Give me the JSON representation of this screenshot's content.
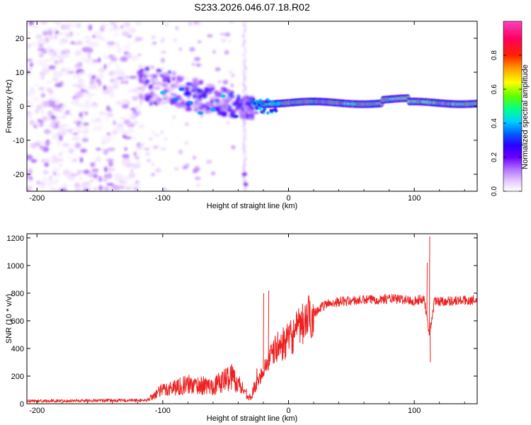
{
  "title": "S233.2026.046.07.18.R02",
  "chart_data": [
    {
      "type": "heatmap",
      "name": "spectrogram",
      "xlabel": "Height of straight line (km)",
      "ylabel": "Frequency (Hz)",
      "xlim": [
        -208,
        150
      ],
      "ylim": [
        -25,
        25
      ],
      "xticks": [
        -200,
        -100,
        0,
        100
      ],
      "yticks": [
        -20,
        -10,
        0,
        10,
        20
      ],
      "colorbar": {
        "label": "Normalized spectral amplitude",
        "range": [
          0,
          1
        ],
        "ticks": [
          0.0,
          0.2,
          0.4,
          0.6,
          0.8
        ],
        "tick_labels": [
          "0.0",
          "0.2",
          "0.4",
          "0.6",
          "0.8"
        ],
        "colormap": [
          "#ffffff",
          "#e6c8ff",
          "#b070ff",
          "#6a00ff",
          "#2a00ff",
          "#0060ff",
          "#00d0ff",
          "#00ff90",
          "#60ff00",
          "#ffff00",
          "#ffa000",
          "#ff2000",
          "#ff0060",
          "#ff40c0"
        ]
      },
      "regions": [
        {
          "x_range": [
            -208,
            -118
          ],
          "freq_range": [
            -25,
            25
          ],
          "amplitude": [
            0.02,
            0.18
          ],
          "description": "broadband noise"
        },
        {
          "x_range": [
            -118,
            -25
          ],
          "freq_range": [
            -5,
            14
          ],
          "amplitude": [
            0.05,
            0.3
          ],
          "description": "emerging signal"
        },
        {
          "x_range": [
            -25,
            150
          ],
          "freq_range": [
            -1,
            3
          ],
          "amplitude": [
            0.3,
            1.0
          ],
          "description": "narrowband tone near 1 Hz"
        }
      ]
    },
    {
      "type": "line",
      "name": "snr",
      "xlabel": "Height of straight line (km)",
      "ylabel": "SNR (10 * v/v)",
      "xlim": [
        -208,
        150
      ],
      "ylim": [
        0,
        1230
      ],
      "xticks": [
        -200,
        -100,
        0,
        100
      ],
      "yticks": [
        0,
        200,
        400,
        600,
        800,
        1000,
        1200
      ],
      "color": "#ee2222",
      "series_envelope": {
        "x": [
          -208,
          -112,
          -100,
          -80,
          -60,
          -45,
          -30,
          -20,
          -10,
          0,
          10,
          20,
          30,
          40,
          60,
          80,
          90,
          100,
          108,
          112,
          116,
          130,
          150
        ],
        "y": [
          20,
          25,
          80,
          110,
          100,
          160,
          30,
          250,
          400,
          460,
          560,
          660,
          720,
          740,
          750,
          760,
          755,
          745,
          760,
          500,
          740,
          745,
          750
        ]
      },
      "spikes": [
        {
          "x": -16,
          "y": 820
        },
        {
          "x": -20,
          "y": 800
        },
        {
          "x": 110,
          "y": 1020
        },
        {
          "x": 112,
          "y": 1210
        },
        {
          "x": 112.5,
          "y": 300
        }
      ]
    }
  ]
}
